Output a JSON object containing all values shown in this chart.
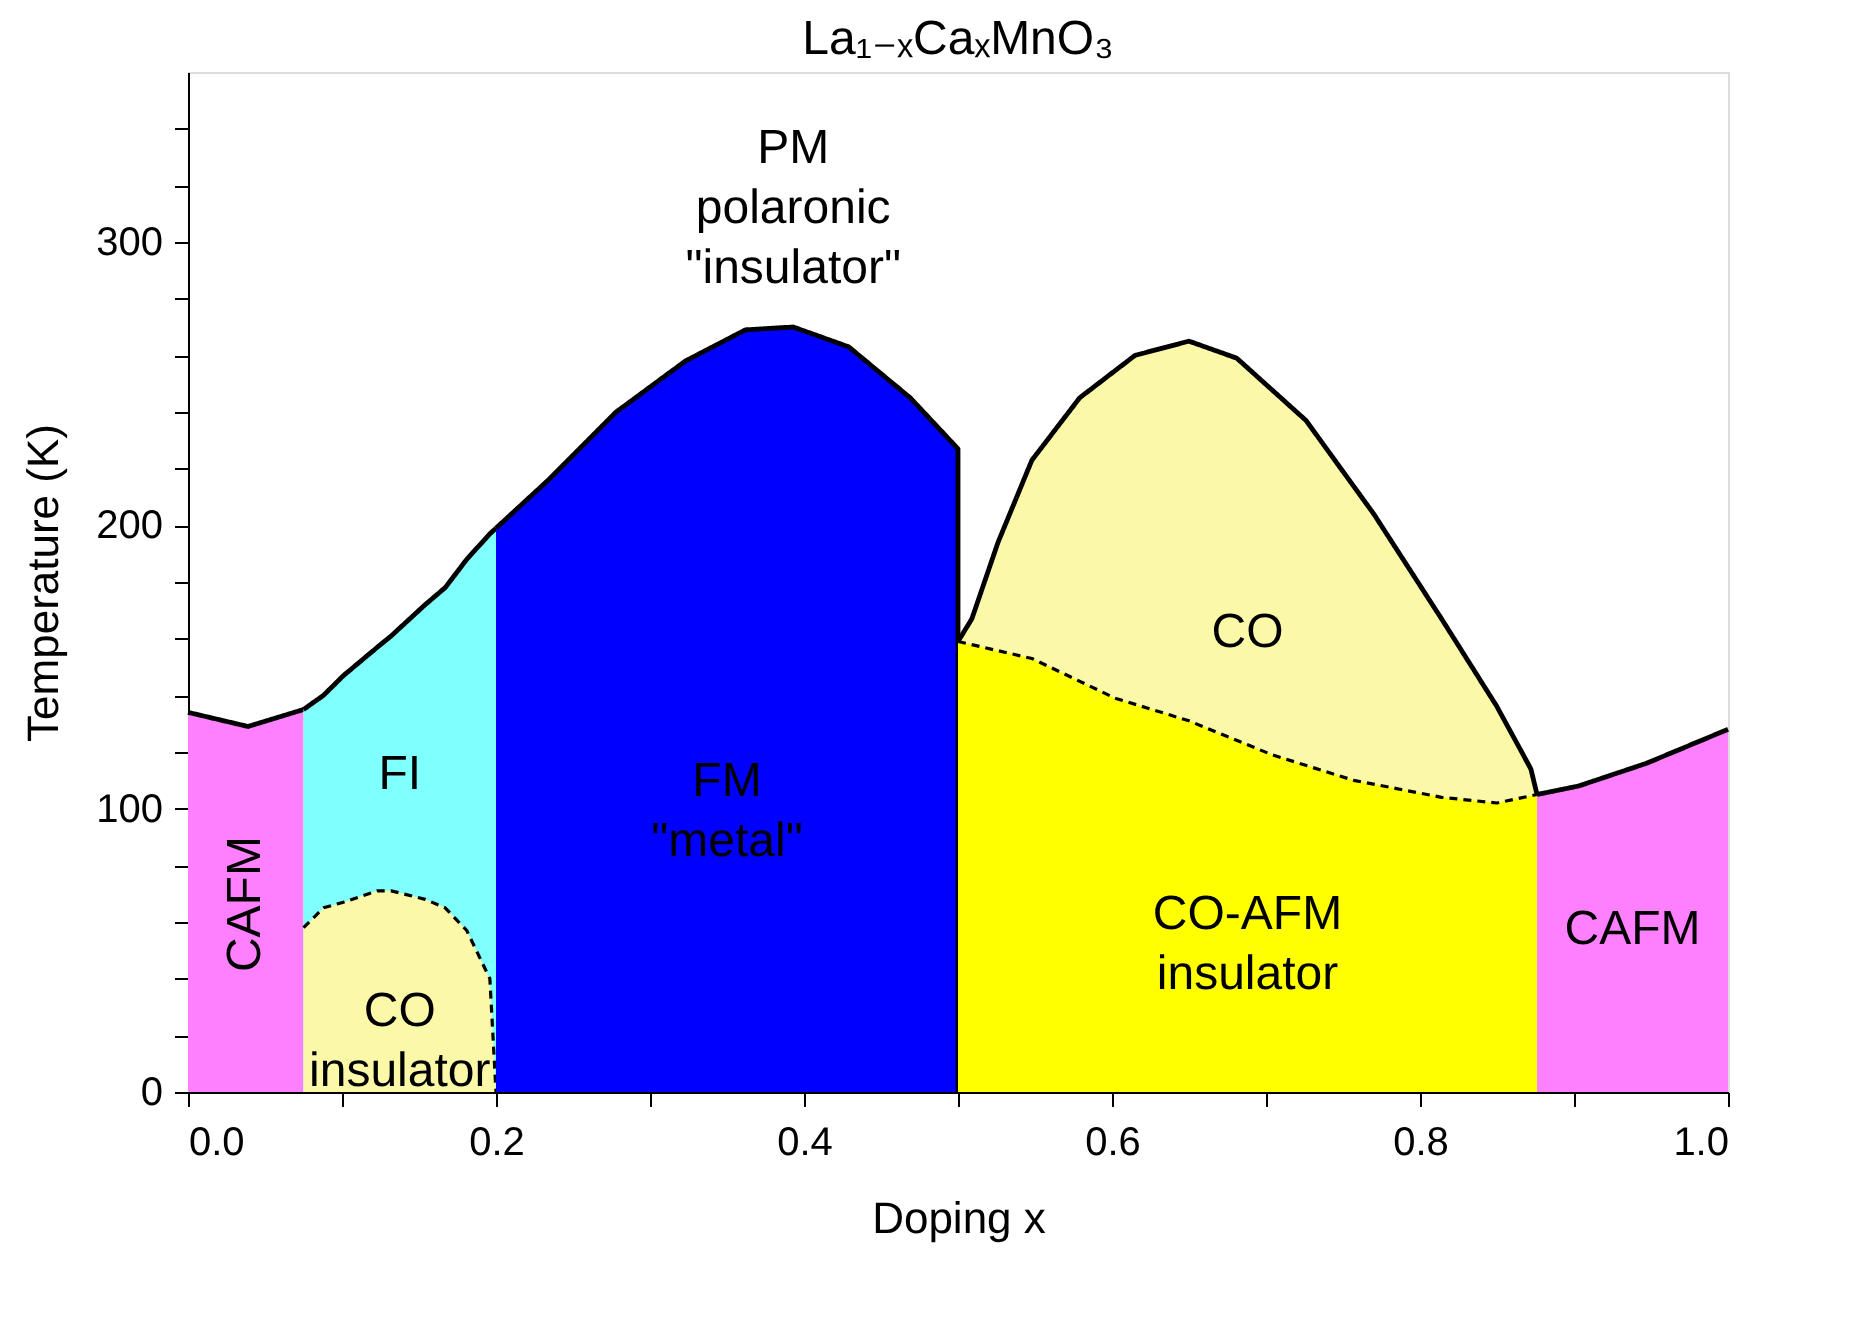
{
  "chart_data": {
    "type": "area",
    "title": "La₁₋ₓCaₓMnO₃",
    "xlabel": "Doping x",
    "ylabel": "Temperature (K)",
    "xlim": [
      0,
      1
    ],
    "ylim": [
      0,
      360
    ],
    "xticks": [
      {
        "value": 0,
        "label": "0.0"
      },
      {
        "value": 0.1,
        "label": null
      },
      {
        "value": 0.2,
        "label": "0.2"
      },
      {
        "value": 0.3,
        "label": null
      },
      {
        "value": 0.4,
        "label": "0.4"
      },
      {
        "value": 0.5,
        "label": null
      },
      {
        "value": 0.6,
        "label": "0.6"
      },
      {
        "value": 0.7,
        "label": null
      },
      {
        "value": 0.8,
        "label": "0.8"
      },
      {
        "value": 0.9,
        "label": null
      },
      {
        "value": 1,
        "label": "1.0"
      }
    ],
    "yticks": [
      0,
      {
        "value": 20,
        "label": null
      },
      {
        "value": 40,
        "label": null
      },
      {
        "value": 60,
        "label": null
      },
      {
        "value": 80,
        "label": null
      },
      100,
      {
        "value": 120,
        "label": null
      },
      {
        "value": 140,
        "label": null
      },
      {
        "value": 160,
        "label": null
      },
      {
        "value": 180,
        "label": null
      },
      200,
      {
        "value": 220,
        "label": null
      },
      {
        "value": 240,
        "label": null
      },
      {
        "value": 260,
        "label": null
      },
      {
        "value": 280,
        "label": null
      },
      300,
      {
        "value": 320,
        "label": null
      },
      {
        "value": 340,
        "label": null
      }
    ],
    "grid": false,
    "series": [
      {
        "name": "CAFM",
        "color": "#ff80ff",
        "line_style": "solid",
        "x": [
          0,
          0.039,
          0.075
        ],
        "values": [
          134,
          129,
          135
        ]
      },
      {
        "name": "FI",
        "color": "#80ffff",
        "line_style": "solid",
        "x": [
          0.075,
          0.088,
          0.101,
          0.123,
          0.132,
          0.154,
          0.167,
          0.181,
          0.196,
          0.2
        ],
        "values": [
          135,
          140,
          147,
          157,
          161,
          172,
          178,
          188,
          197,
          199
        ]
      },
      {
        "name": "CO\ninsulator",
        "color": "#fbf9a8",
        "line_style": "dashed",
        "x": [
          0.075,
          0.088,
          0.101,
          0.123,
          0.132,
          0.154,
          0.167,
          0.181,
          0.196,
          0.2
        ],
        "values": [
          58,
          65,
          67,
          71,
          71,
          68,
          65,
          57,
          40,
          0
        ]
      },
      {
        "name": "FM\n\"metal\"",
        "color": "#0000ff",
        "line_style": "solid",
        "x": [
          0.2,
          0.234,
          0.278,
          0.323,
          0.362,
          0.393,
          0.429,
          0.469,
          0.5,
          0.5
        ],
        "values": [
          199,
          216,
          240,
          258,
          269,
          270,
          263,
          245,
          227,
          0
        ]
      },
      {
        "name": "CO",
        "color": "#fbf9a8",
        "line_style": "solid",
        "x": [
          0.5,
          0.509,
          0.526,
          0.548,
          0.579,
          0.615,
          0.65,
          0.681,
          0.726,
          0.77,
          0.814,
          0.85,
          0.872,
          0.876
        ],
        "values": [
          159,
          167,
          194,
          223,
          245,
          260,
          265,
          259,
          237,
          204,
          167,
          136,
          114,
          105
        ]
      },
      {
        "name": "CO-AFM\n\ninsulator",
        "color": "#ffff00",
        "line_style": "dashed",
        "x": [
          0.5,
          0.548,
          0.602,
          0.65,
          0.704,
          0.757,
          0.814,
          0.85,
          0.876
        ],
        "values": [
          159,
          153,
          139,
          131,
          119,
          110,
          104,
          102,
          105
        ]
      },
      {
        "name": "CAFM",
        "color": "#ff80ff",
        "line_style": "solid",
        "x": [
          0.876,
          0.903,
          0.947,
          1
        ],
        "values": [
          105,
          108,
          116,
          128
        ]
      }
    ],
    "annotations": [
      "PM\npolaronic\n\"insulator\""
    ]
  }
}
